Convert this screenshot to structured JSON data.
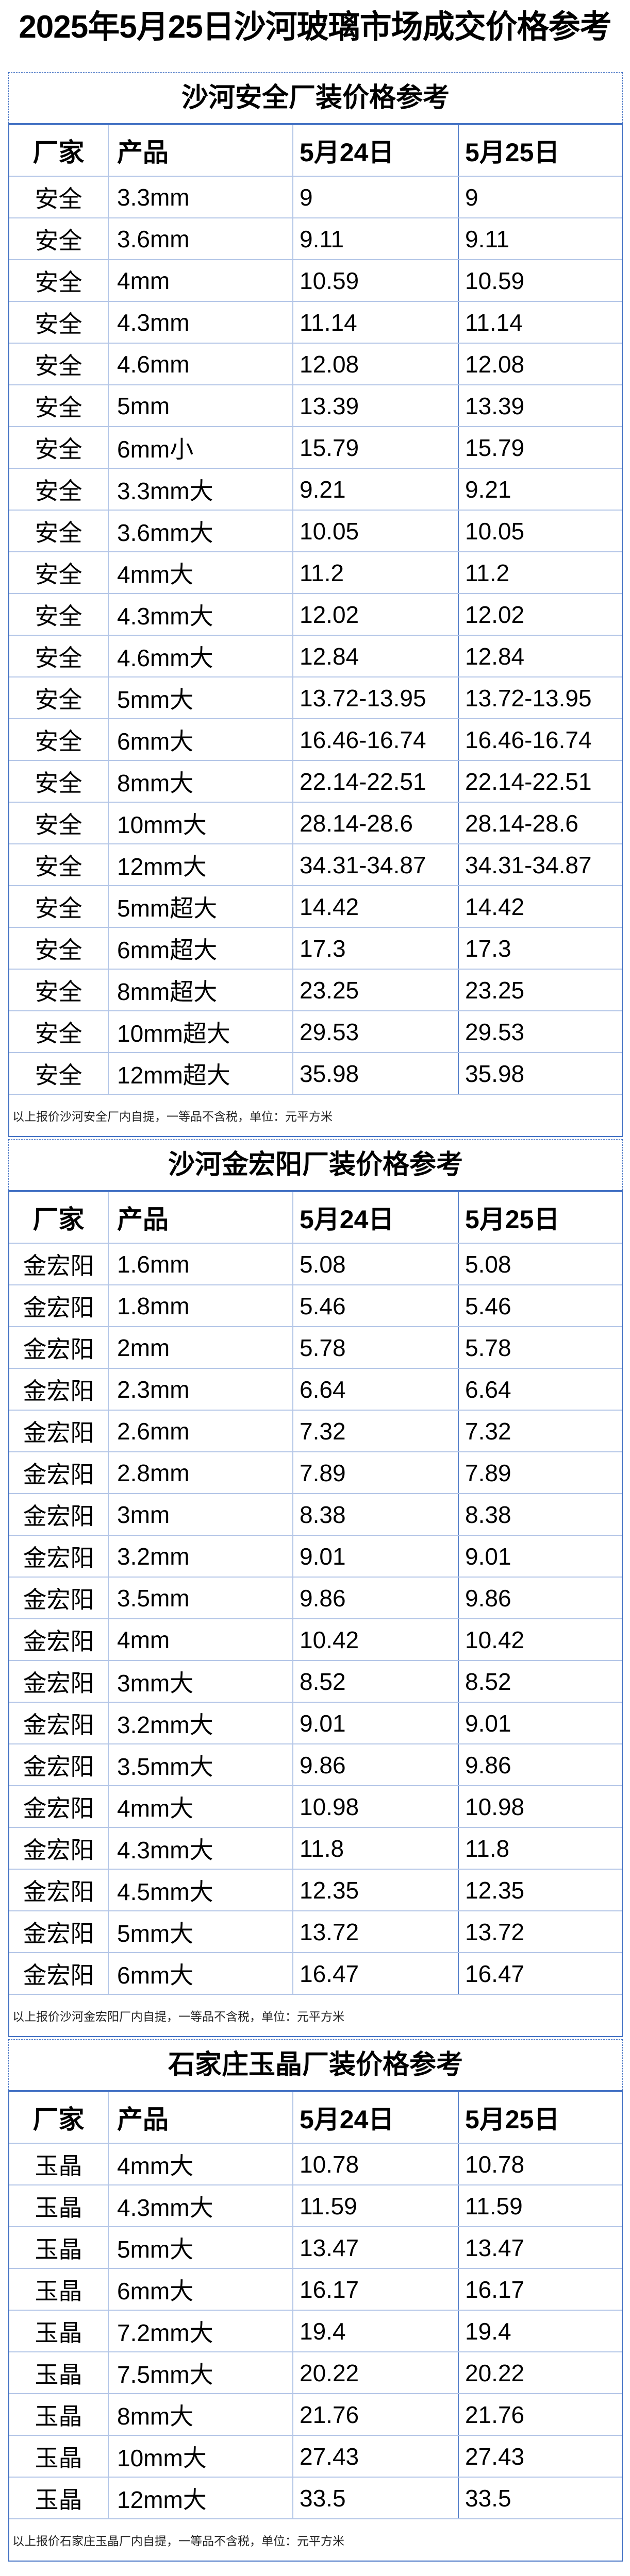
{
  "title": "2025年5月25日沙河玻璃市场成交价格参考",
  "colors": {
    "border": "#4472c4",
    "grid": "#b4c6e7"
  },
  "sections": [
    {
      "title": "沙河安全厂装价格参考",
      "headers": [
        "厂家",
        "产品",
        "5月24日",
        "5月25日"
      ],
      "rows": [
        [
          "安全",
          "3.3mm",
          "9",
          "9"
        ],
        [
          "安全",
          "3.6mm",
          "9.11",
          "9.11"
        ],
        [
          "安全",
          "4mm",
          "10.59",
          "10.59"
        ],
        [
          "安全",
          "4.3mm",
          "11.14",
          "11.14"
        ],
        [
          "安全",
          "4.6mm",
          "12.08",
          "12.08"
        ],
        [
          "安全",
          "5mm",
          "13.39",
          "13.39"
        ],
        [
          "安全",
          "6mm小",
          "15.79",
          "15.79"
        ],
        [
          "安全",
          "3.3mm大",
          "9.21",
          "9.21"
        ],
        [
          "安全",
          "3.6mm大",
          "10.05",
          "10.05"
        ],
        [
          "安全",
          "4mm大",
          "11.2",
          "11.2"
        ],
        [
          "安全",
          "4.3mm大",
          "12.02",
          "12.02"
        ],
        [
          "安全",
          "4.6mm大",
          "12.84",
          "12.84"
        ],
        [
          "安全",
          "5mm大",
          "13.72-13.95",
          "13.72-13.95"
        ],
        [
          "安全",
          "6mm大",
          "16.46-16.74",
          "16.46-16.74"
        ],
        [
          "安全",
          "8mm大",
          "22.14-22.51",
          "22.14-22.51"
        ],
        [
          "安全",
          "10mm大",
          "28.14-28.6",
          "28.14-28.6"
        ],
        [
          "安全",
          "12mm大",
          "34.31-34.87",
          "34.31-34.87"
        ],
        [
          "安全",
          "5mm超大",
          "14.42",
          "14.42"
        ],
        [
          "安全",
          "6mm超大",
          "17.3",
          "17.3"
        ],
        [
          "安全",
          "8mm超大",
          "23.25",
          "23.25"
        ],
        [
          "安全",
          "10mm超大",
          "29.53",
          "29.53"
        ],
        [
          "安全",
          "12mm超大",
          "35.98",
          "35.98"
        ]
      ],
      "note": "以上报价沙河安全厂内自提，一等品不含税，单位：元平方米"
    },
    {
      "title": "沙河金宏阳厂装价格参考",
      "headers": [
        "厂家",
        "产品",
        "5月24日",
        "5月25日"
      ],
      "rows": [
        [
          "金宏阳",
          "1.6mm",
          "5.08",
          "5.08"
        ],
        [
          "金宏阳",
          "1.8mm",
          "5.46",
          "5.46"
        ],
        [
          "金宏阳",
          "2mm",
          "5.78",
          "5.78"
        ],
        [
          "金宏阳",
          "2.3mm",
          "6.64",
          "6.64"
        ],
        [
          "金宏阳",
          "2.6mm",
          "7.32",
          "7.32"
        ],
        [
          "金宏阳",
          "2.8mm",
          "7.89",
          "7.89"
        ],
        [
          "金宏阳",
          "3mm",
          "8.38",
          "8.38"
        ],
        [
          "金宏阳",
          "3.2mm",
          "9.01",
          "9.01"
        ],
        [
          "金宏阳",
          "3.5mm",
          "9.86",
          "9.86"
        ],
        [
          "金宏阳",
          "4mm",
          "10.42",
          "10.42"
        ],
        [
          "金宏阳",
          "3mm大",
          "8.52",
          "8.52"
        ],
        [
          "金宏阳",
          "3.2mm大",
          "9.01",
          "9.01"
        ],
        [
          "金宏阳",
          "3.5mm大",
          "9.86",
          "9.86"
        ],
        [
          "金宏阳",
          "4mm大",
          "10.98",
          "10.98"
        ],
        [
          "金宏阳",
          "4.3mm大",
          "11.8",
          "11.8"
        ],
        [
          "金宏阳",
          "4.5mm大",
          "12.35",
          "12.35"
        ],
        [
          "金宏阳",
          "5mm大",
          "13.72",
          "13.72"
        ],
        [
          "金宏阳",
          "6mm大",
          "16.47",
          "16.47"
        ]
      ],
      "note": "以上报价沙河金宏阳厂内自提，一等品不含税，单位：元平方米"
    },
    {
      "title": "石家庄玉晶厂装价格参考",
      "headers": [
        "厂家",
        "产品",
        "5月24日",
        "5月25日"
      ],
      "rows": [
        [
          "玉晶",
          "4mm大",
          "10.78",
          "10.78"
        ],
        [
          "玉晶",
          "4.3mm大",
          "11.59",
          "11.59"
        ],
        [
          "玉晶",
          "5mm大",
          "13.47",
          "13.47"
        ],
        [
          "玉晶",
          "6mm大",
          "16.17",
          "16.17"
        ],
        [
          "玉晶",
          "7.2mm大",
          "19.4",
          "19.4"
        ],
        [
          "玉晶",
          "7.5mm大",
          "20.22",
          "20.22"
        ],
        [
          "玉晶",
          "8mm大",
          "21.76",
          "21.76"
        ],
        [
          "玉晶",
          "10mm大",
          "27.43",
          "27.43"
        ],
        [
          "玉晶",
          "12mm大",
          "33.5",
          "33.5"
        ]
      ],
      "note": "以上报价石家庄玉晶厂内自提，一等品不含税，单位：元平方米"
    }
  ]
}
